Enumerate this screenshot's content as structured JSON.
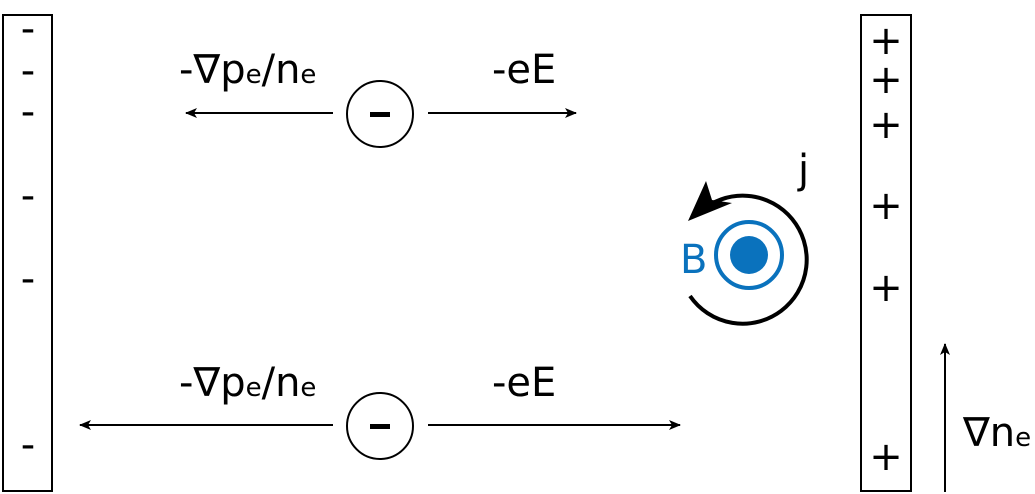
{
  "left_plate": {
    "charge_symbol": "-",
    "charge_count": 6
  },
  "right_plate": {
    "charge_symbol": "+",
    "charge_count": 6
  },
  "electron_symbol": "-",
  "upper_row": {
    "left_force_label": "-∇p",
    "left_force_sub": "e",
    "left_force_mid": "/n",
    "left_force_sub2": "e",
    "right_force_label": "-eE"
  },
  "lower_row": {
    "left_force_label": "-∇p",
    "left_force_sub": "e",
    "left_force_mid": "/n",
    "left_force_sub2": "e",
    "right_force_label": "-eE"
  },
  "current_label": "j",
  "field_label": "B",
  "gradient_label": "∇n",
  "gradient_sub": "e",
  "colors": {
    "field": "#0a72bd",
    "ink": "#000000"
  }
}
